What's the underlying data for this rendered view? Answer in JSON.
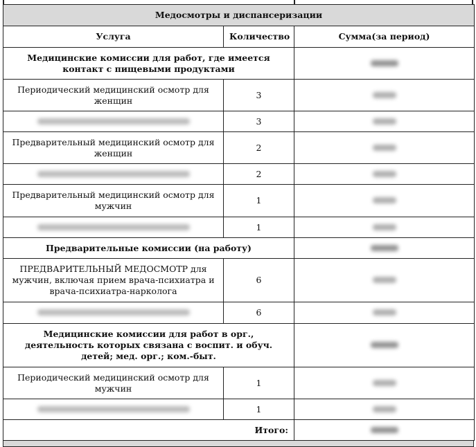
{
  "section_title": "Медосмотры и диспансеризации",
  "columns": [
    "Услуга",
    "Количество",
    "Сумма(за период)"
  ],
  "groups": [
    {
      "title": "Медицинские комиссии для работ, где имеется контакт с пищевыми продуктами",
      "rows": [
        {
          "service": "Периодический медицинский осмотр для женщин",
          "qty": "3"
        },
        {
          "service": "",
          "qty": "3"
        },
        {
          "service": "Предварительный медицинский осмотр для женщин",
          "qty": "2"
        },
        {
          "service": "",
          "qty": "2"
        },
        {
          "service": "Предварительный медицинский осмотр для мужчин",
          "qty": "1"
        },
        {
          "service": "",
          "qty": "1"
        }
      ]
    },
    {
      "title": "Предварительные комиссии (на работу)",
      "rows": [
        {
          "service": "ПРЕДВАРИТЕЛЬНЫЙ МЕДОСМОТР для мужчин, включая прием врача-психиатра и врача-психиатра-нарколога",
          "qty": "6"
        },
        {
          "service": "",
          "qty": "6"
        }
      ]
    },
    {
      "title": "Медицинские комиссии для работ в орг., деятельность которых связана с воспит. и обуч. детей; мед. орг.; ком.-быт.",
      "rows": [
        {
          "service": "Периодический медицинский осмотр для мужчин",
          "qty": "1"
        },
        {
          "service": "",
          "qty": "1"
        }
      ]
    }
  ],
  "total_label": "Итого:"
}
